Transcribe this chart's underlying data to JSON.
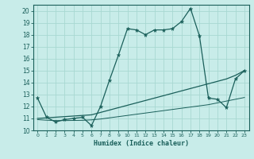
{
  "title": "",
  "xlabel": "Humidex (Indice chaleur)",
  "bg_color": "#c8ece9",
  "line_color": "#1a5f5a",
  "grid_color": "#a8d8d2",
  "xlim": [
    -0.5,
    23.5
  ],
  "ylim": [
    10,
    20.5
  ],
  "yticks": [
    10,
    11,
    12,
    13,
    14,
    15,
    16,
    17,
    18,
    19,
    20
  ],
  "xticks": [
    0,
    1,
    2,
    3,
    4,
    5,
    6,
    7,
    8,
    9,
    10,
    11,
    12,
    13,
    14,
    15,
    16,
    17,
    18,
    19,
    20,
    21,
    22,
    23
  ],
  "curve1_x": [
    0,
    1,
    2,
    3,
    4,
    5,
    6,
    7,
    8,
    9,
    10,
    11,
    12,
    13,
    14,
    15,
    16,
    17,
    18,
    19,
    20,
    21,
    22,
    23
  ],
  "curve1_y": [
    12.7,
    11.1,
    10.7,
    10.9,
    11.0,
    11.1,
    10.4,
    12.0,
    14.2,
    16.3,
    18.5,
    18.4,
    18.0,
    18.4,
    18.4,
    18.5,
    19.1,
    20.2,
    17.9,
    12.7,
    12.6,
    11.9,
    14.3,
    15.0
  ],
  "curve2_x": [
    0,
    1,
    2,
    3,
    4,
    5,
    6,
    7,
    8,
    9,
    10,
    11,
    12,
    13,
    14,
    15,
    16,
    17,
    18,
    19,
    20,
    21,
    22,
    23
  ],
  "curve2_y": [
    11.0,
    11.05,
    11.1,
    11.15,
    11.2,
    11.25,
    11.3,
    11.5,
    11.7,
    11.9,
    12.1,
    12.3,
    12.5,
    12.7,
    12.9,
    13.1,
    13.3,
    13.5,
    13.7,
    13.9,
    14.1,
    14.3,
    14.6,
    15.0
  ],
  "curve3_x": [
    0,
    1,
    2,
    3,
    4,
    5,
    6,
    7,
    8,
    9,
    10,
    11,
    12,
    13,
    14,
    15,
    16,
    17,
    18,
    19,
    20,
    21,
    22,
    23
  ],
  "curve3_y": [
    10.9,
    10.85,
    10.82,
    10.82,
    10.83,
    10.84,
    10.88,
    10.95,
    11.05,
    11.15,
    11.25,
    11.35,
    11.45,
    11.55,
    11.65,
    11.75,
    11.85,
    11.95,
    12.05,
    12.15,
    12.3,
    12.45,
    12.6,
    12.75
  ]
}
